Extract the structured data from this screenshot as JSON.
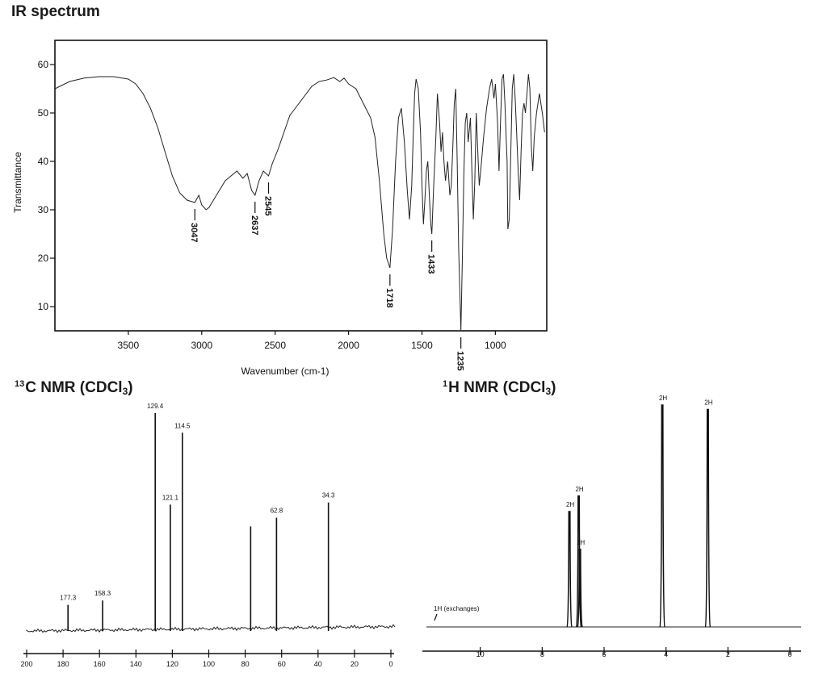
{
  "ir": {
    "title": "IR spectrum",
    "chart_data": {
      "type": "line",
      "title": "IR spectrum",
      "xlabel": "Wavenumber (cm-1)",
      "ylabel": "Transmittance",
      "xlim": [
        4000,
        650
      ],
      "ylim": [
        5,
        65
      ],
      "x_reversed": true,
      "xticks": [
        3500,
        3000,
        2500,
        2000,
        1500,
        1000
      ],
      "yticks": [
        10,
        20,
        30,
        40,
        50,
        60
      ],
      "points": [
        [
          4000,
          55
        ],
        [
          3900,
          56.5
        ],
        [
          3800,
          57.2
        ],
        [
          3700,
          57.5
        ],
        [
          3600,
          57.5
        ],
        [
          3500,
          57
        ],
        [
          3450,
          56
        ],
        [
          3400,
          54
        ],
        [
          3350,
          51
        ],
        [
          3300,
          47
        ],
        [
          3250,
          42
        ],
        [
          3200,
          37
        ],
        [
          3150,
          33.5
        ],
        [
          3100,
          32
        ],
        [
          3047,
          31.5
        ],
        [
          3020,
          33
        ],
        [
          3000,
          31
        ],
        [
          2970,
          30
        ],
        [
          2950,
          30.5
        ],
        [
          2920,
          32
        ],
        [
          2880,
          34
        ],
        [
          2840,
          36
        ],
        [
          2800,
          37
        ],
        [
          2760,
          38
        ],
        [
          2720,
          36.5
        ],
        [
          2690,
          37.5
        ],
        [
          2660,
          34
        ],
        [
          2637,
          33
        ],
        [
          2610,
          36
        ],
        [
          2580,
          38
        ],
        [
          2545,
          37
        ],
        [
          2520,
          39.5
        ],
        [
          2480,
          42.5
        ],
        [
          2440,
          46
        ],
        [
          2400,
          49.5
        ],
        [
          2350,
          51.5
        ],
        [
          2300,
          53.5
        ],
        [
          2250,
          55.5
        ],
        [
          2200,
          56.5
        ],
        [
          2150,
          56.8
        ],
        [
          2100,
          57.3
        ],
        [
          2060,
          56.5
        ],
        [
          2030,
          57.2
        ],
        [
          2000,
          56
        ],
        [
          1950,
          55
        ],
        [
          1900,
          52
        ],
        [
          1850,
          49
        ],
        [
          1820,
          45
        ],
        [
          1790,
          36
        ],
        [
          1760,
          25
        ],
        [
          1740,
          20
        ],
        [
          1718,
          18
        ],
        [
          1700,
          26
        ],
        [
          1680,
          40
        ],
        [
          1660,
          49
        ],
        [
          1640,
          51
        ],
        [
          1620,
          44
        ],
        [
          1600,
          34
        ],
        [
          1585,
          28
        ],
        [
          1570,
          35
        ],
        [
          1560,
          45
        ],
        [
          1550,
          54
        ],
        [
          1540,
          57
        ],
        [
          1525,
          55
        ],
        [
          1510,
          46
        ],
        [
          1500,
          35
        ],
        [
          1490,
          27
        ],
        [
          1480,
          32
        ],
        [
          1470,
          38
        ],
        [
          1460,
          40
        ],
        [
          1450,
          33
        ],
        [
          1440,
          27
        ],
        [
          1433,
          25
        ],
        [
          1420,
          35
        ],
        [
          1405,
          45
        ],
        [
          1395,
          54
        ],
        [
          1380,
          48
        ],
        [
          1370,
          42
        ],
        [
          1360,
          46
        ],
        [
          1350,
          40
        ],
        [
          1340,
          36
        ],
        [
          1325,
          40
        ],
        [
          1310,
          33
        ],
        [
          1300,
          35
        ],
        [
          1290,
          43
        ],
        [
          1280,
          52
        ],
        [
          1270,
          55
        ],
        [
          1260,
          40
        ],
        [
          1250,
          22
        ],
        [
          1235,
          5
        ],
        [
          1225,
          20
        ],
        [
          1215,
          37
        ],
        [
          1205,
          48
        ],
        [
          1195,
          50
        ],
        [
          1185,
          44
        ],
        [
          1170,
          49
        ],
        [
          1160,
          38
        ],
        [
          1150,
          28
        ],
        [
          1140,
          36
        ],
        [
          1130,
          50
        ],
        [
          1120,
          42
        ],
        [
          1110,
          35
        ],
        [
          1100,
          38
        ],
        [
          1080,
          45
        ],
        [
          1060,
          51
        ],
        [
          1040,
          55
        ],
        [
          1025,
          57
        ],
        [
          1010,
          53
        ],
        [
          1000,
          56
        ],
        [
          985,
          48
        ],
        [
          975,
          38
        ],
        [
          965,
          48
        ],
        [
          955,
          57
        ],
        [
          945,
          58
        ],
        [
          935,
          52
        ],
        [
          928,
          46
        ],
        [
          920,
          40
        ],
        [
          915,
          26
        ],
        [
          905,
          28
        ],
        [
          895,
          42
        ],
        [
          885,
          55
        ],
        [
          875,
          58
        ],
        [
          865,
          53
        ],
        [
          855,
          46
        ],
        [
          845,
          38
        ],
        [
          835,
          32
        ],
        [
          825,
          42
        ],
        [
          815,
          50
        ],
        [
          805,
          52
        ],
        [
          795,
          50
        ],
        [
          785,
          54
        ],
        [
          775,
          58
        ],
        [
          765,
          55
        ],
        [
          755,
          43
        ],
        [
          745,
          38
        ],
        [
          735,
          45
        ],
        [
          720,
          50
        ],
        [
          700,
          54
        ],
        [
          680,
          50
        ],
        [
          665,
          46
        ]
      ],
      "annotations": [
        {
          "x": 3047,
          "label": "3047"
        },
        {
          "x": 2637,
          "label": "2637"
        },
        {
          "x": 2545,
          "label": "2545"
        },
        {
          "x": 1718,
          "label": "1718"
        },
        {
          "x": 1433,
          "label": "1433"
        },
        {
          "x": 1235,
          "label": "1235"
        }
      ]
    }
  },
  "c13": {
    "title_main": "C NMR (CDCl",
    "title_sup": "13",
    "title_sub": "3",
    "title_end": ")",
    "chart_data": {
      "type": "bar",
      "title": "13C NMR (CDCl3)",
      "xlim": [
        200,
        0
      ],
      "x_reversed": true,
      "xticks": [
        200,
        180,
        160,
        140,
        120,
        100,
        80,
        60,
        40,
        20,
        0
      ],
      "peaks": [
        {
          "shift": 177.3,
          "height": 0.12,
          "label": "177.3"
        },
        {
          "shift": 158.3,
          "height": 0.14,
          "label": "158.3"
        },
        {
          "shift": 129.4,
          "height": 1.0,
          "label": "129.4"
        },
        {
          "shift": 121.1,
          "height": 0.58,
          "label": "121.1"
        },
        {
          "shift": 114.5,
          "height": 0.91,
          "label": "114.5"
        },
        {
          "shift": 77.0,
          "height": 0.48,
          "label": ""
        },
        {
          "shift": 62.8,
          "height": 0.52,
          "label": "62.8"
        },
        {
          "shift": 34.3,
          "height": 0.59,
          "label": "34.3"
        }
      ]
    }
  },
  "h1": {
    "title_main": "H NMR (CDCl",
    "title_sup": "1",
    "title_sub": "3",
    "title_end": ")",
    "chart_data": {
      "type": "bar",
      "title": "1H NMR (CDCl3)",
      "xlim": [
        12,
        0
      ],
      "x_reversed": true,
      "xticks": [
        10,
        8,
        6,
        4,
        2,
        0
      ],
      "peaks": [
        {
          "shift": 7.12,
          "height": 0.52,
          "label": "2H"
        },
        {
          "shift": 6.82,
          "height": 0.59,
          "label": "2H"
        },
        {
          "shift": 6.78,
          "height": 0.35,
          "label": "1H"
        },
        {
          "shift": 4.12,
          "height": 1.0,
          "label": "2H"
        },
        {
          "shift": 2.65,
          "height": 0.98,
          "label": "2H"
        }
      ],
      "note": "1H (exchanges)"
    }
  }
}
